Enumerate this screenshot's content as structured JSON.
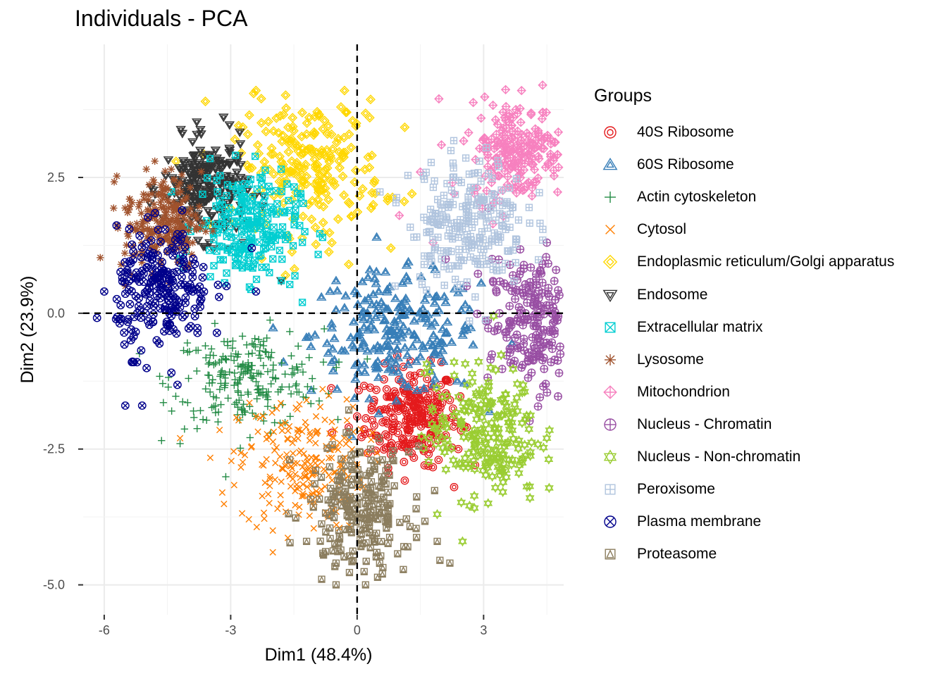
{
  "chart_data": {
    "type": "scatter",
    "title": "Individuals - PCA",
    "xlabel": "Dim1 (48.4%)",
    "ylabel": "Dim2 (23.9%)",
    "xlim": [
      -6.5,
      4.9
    ],
    "ylim": [
      -5.55,
      4.95
    ],
    "xticks": [
      -6,
      -3,
      0,
      3
    ],
    "xtick_labels": [
      "-6",
      "-3",
      "0",
      "3"
    ],
    "yticks": [
      -5.0,
      -2.5,
      0.0,
      2.5
    ],
    "ytick_labels": [
      "-5.0",
      "-2.5",
      "0.0",
      "2.5"
    ],
    "grid": true,
    "reference_lines": {
      "x": 0,
      "y": 0,
      "style": "dashed"
    },
    "legend": {
      "title": "Groups",
      "position": "right"
    },
    "series": [
      {
        "name": "40S Ribosome",
        "color": "#E41A1C",
        "marker": "double-circle",
        "center": [
          1.3,
          -1.9
        ],
        "spread": [
          0.55,
          0.45
        ],
        "points": [
          [
            0.0,
            -1.9
          ],
          [
            -0.2,
            -2.1
          ],
          [
            0.4,
            -1.6
          ],
          [
            0.7,
            -1.4
          ],
          [
            1.0,
            -1.7
          ],
          [
            1.4,
            -1.8
          ],
          [
            1.8,
            -1.9
          ],
          [
            2.2,
            -1.6
          ],
          [
            2.6,
            -2.1
          ],
          [
            1.2,
            -2.4
          ],
          [
            0.8,
            -2.6
          ],
          [
            1.6,
            -2.8
          ],
          [
            2.3,
            -3.2
          ],
          [
            0.3,
            -2.2
          ],
          [
            1.5,
            -1.1
          ],
          [
            2.0,
            -0.9
          ],
          [
            -0.6,
            -2.2
          ],
          [
            2.4,
            -2.5
          ]
        ]
      },
      {
        "name": "60S Ribosome",
        "color": "#377EB8",
        "marker": "double-triangle",
        "center": [
          0.9,
          -0.4
        ],
        "spread": [
          1.0,
          0.55
        ],
        "points": [
          [
            -1.0,
            -0.4
          ],
          [
            -0.5,
            0.6
          ],
          [
            0.3,
            0.8
          ],
          [
            1.2,
            0.6
          ],
          [
            2.1,
            0.2
          ],
          [
            2.6,
            -0.3
          ],
          [
            1.5,
            -0.8
          ],
          [
            0.5,
            -1.0
          ],
          [
            -0.6,
            -0.9
          ],
          [
            -0.3,
            0.1
          ],
          [
            0.9,
            -0.2
          ],
          [
            1.8,
            -0.6
          ]
        ]
      },
      {
        "name": "Actin cytoskeleton",
        "color": "#238B45",
        "marker": "plus",
        "center": [
          -2.6,
          -1.2
        ],
        "spread": [
          0.9,
          0.45
        ],
        "points": [
          [
            -4.4,
            -1.8
          ],
          [
            -4.0,
            -1.2
          ],
          [
            -3.3,
            -2.0
          ],
          [
            -2.8,
            -1.6
          ],
          [
            -2.1,
            -0.8
          ],
          [
            -1.5,
            -1.1
          ],
          [
            -0.8,
            -0.9
          ],
          [
            -3.6,
            -0.6
          ],
          [
            -4.2,
            -2.4
          ],
          [
            -2.4,
            -1.9
          ]
        ]
      },
      {
        "name": "Cytosol",
        "color": "#FF7F00",
        "marker": "cross",
        "center": [
          -1.3,
          -2.8
        ],
        "spread": [
          0.75,
          0.6
        ],
        "points": [
          [
            -4.2,
            -2.3
          ],
          [
            -3.2,
            -3.3
          ],
          [
            -2.0,
            -4.0
          ],
          [
            -2.0,
            -4.4
          ],
          [
            -1.2,
            -1.6
          ],
          [
            -0.6,
            -2.0
          ],
          [
            -0.4,
            -3.0
          ],
          [
            -1.8,
            -3.1
          ],
          [
            -2.4,
            -1.9
          ]
        ]
      },
      {
        "name": "Endoplasmic reticulum/Golgi apparatus",
        "color": "#FFD700",
        "marker": "double-diamond",
        "center": [
          -1.1,
          2.7
        ],
        "spread": [
          0.85,
          0.6
        ],
        "points": [
          [
            -3.6,
            3.9
          ],
          [
            -2.4,
            4.1
          ],
          [
            -0.3,
            4.1
          ],
          [
            0.3,
            3.6
          ],
          [
            -2.9,
            3.2
          ],
          [
            -0.9,
            2.0
          ],
          [
            -0.6,
            1.3
          ],
          [
            -0.2,
            0.9
          ],
          [
            0.8,
            1.2
          ],
          [
            1.3,
            2.2
          ],
          [
            -1.7,
            0.7
          ],
          [
            0.4,
            2.4
          ]
        ]
      },
      {
        "name": "Endosome",
        "color": "#333333",
        "marker": "double-triangle-down",
        "center": [
          -3.6,
          2.3
        ],
        "spread": [
          0.5,
          0.45
        ],
        "points": [
          [
            -3.7,
            3.3
          ],
          [
            -3.3,
            2.6
          ],
          [
            -4.3,
            2.4
          ],
          [
            -3.0,
            2.1
          ],
          [
            -3.4,
            1.5
          ],
          [
            -2.7,
            1.3
          ],
          [
            -1.8,
            0.6
          ],
          [
            -3.5,
            2.9
          ],
          [
            -4.0,
            1.9
          ]
        ]
      },
      {
        "name": "Extracellular matrix",
        "color": "#00CED1",
        "marker": "box-cross",
        "center": [
          -2.6,
          1.6
        ],
        "spread": [
          0.6,
          0.5
        ],
        "points": [
          [
            -2.3,
            2.5
          ],
          [
            -3.2,
            2.0
          ],
          [
            -2.5,
            1.3
          ],
          [
            -1.8,
            0.6
          ],
          [
            -1.3,
            0.2
          ],
          [
            -2.0,
            1.0
          ],
          [
            -3.0,
            1.6
          ]
        ]
      },
      {
        "name": "Lysosome",
        "color": "#A0522D",
        "marker": "asterisk",
        "center": [
          -4.6,
          1.7
        ],
        "spread": [
          0.45,
          0.45
        ],
        "points": [
          [
            -4.8,
            2.8
          ],
          [
            -5.4,
            2.1
          ],
          [
            -5.6,
            0.9
          ],
          [
            -5.5,
            0.5
          ],
          [
            -4.2,
            2.4
          ],
          [
            -3.9,
            1.3
          ],
          [
            -4.9,
            1.5
          ]
        ]
      },
      {
        "name": "Mitochondrion",
        "color": "#F781BF",
        "marker": "diamond-plus",
        "center": [
          3.8,
          3.0
        ],
        "spread": [
          0.55,
          0.45
        ],
        "points": [
          [
            3.9,
            4.1
          ],
          [
            4.4,
            4.2
          ],
          [
            4.9,
            2.5
          ],
          [
            2.0,
            3.1
          ],
          [
            1.5,
            2.6
          ],
          [
            1.0,
            1.8
          ],
          [
            2.3,
            2.2
          ],
          [
            1.8,
            1.3
          ],
          [
            3.1,
            2.7
          ],
          [
            4.4,
            3.7
          ]
        ]
      },
      {
        "name": "Nucleus - Chromatin",
        "color": "#984EA3",
        "marker": "circle-plus",
        "center": [
          4.2,
          -0.2
        ],
        "spread": [
          0.55,
          0.6
        ],
        "points": [
          [
            4.5,
            1.3
          ],
          [
            4.4,
            0.9
          ],
          [
            5.0,
            0.7
          ],
          [
            3.2,
            1.0
          ],
          [
            2.6,
            0.5
          ],
          [
            3.9,
            -1.0
          ],
          [
            4.6,
            -0.9
          ],
          [
            5.2,
            -0.1
          ],
          [
            2.1,
            1.0
          ]
        ]
      },
      {
        "name": "Nucleus - Non-chromatin",
        "color": "#9ACD32",
        "marker": "star-of-david",
        "center": [
          3.0,
          -2.2
        ],
        "spread": [
          0.65,
          0.6
        ],
        "points": [
          [
            4.5,
            -2.3
          ],
          [
            4.9,
            -3.1
          ],
          [
            4.1,
            -3.4
          ],
          [
            2.5,
            -4.2
          ],
          [
            1.9,
            -3.7
          ],
          [
            1.6,
            -1.1
          ],
          [
            2.3,
            -0.9
          ],
          [
            3.8,
            -1.3
          ]
        ]
      },
      {
        "name": "Peroxisome",
        "color": "#B0C4DE",
        "marker": "box-plus",
        "center": [
          2.6,
          1.7
        ],
        "spread": [
          0.7,
          0.6
        ],
        "points": [
          [
            2.9,
            2.8
          ],
          [
            3.2,
            2.2
          ],
          [
            2.6,
            1.7
          ],
          [
            1.7,
            1.5
          ],
          [
            0.9,
            0.5
          ],
          [
            2.8,
            0.3
          ],
          [
            2.0,
            1.0
          ],
          [
            3.4,
            1.4
          ]
        ]
      },
      {
        "name": "Plasma membrane",
        "color": "#00008B",
        "marker": "circle-cross",
        "center": [
          -4.6,
          0.4
        ],
        "spread": [
          0.55,
          0.55
        ],
        "points": [
          [
            -6.0,
            0.4
          ],
          [
            -5.6,
            -0.1
          ],
          [
            -5.3,
            -0.9
          ],
          [
            -5.1,
            -1.7
          ],
          [
            -5.5,
            -1.7
          ],
          [
            -3.9,
            0.4
          ],
          [
            -3.1,
            0.5
          ],
          [
            -2.4,
            0.4
          ],
          [
            -2.5,
            1.2
          ],
          [
            -4.4,
            1.2
          ]
        ]
      },
      {
        "name": "Proteasome",
        "color": "#8B7D5E",
        "marker": "box-triangle",
        "center": [
          0.05,
          -3.6
        ],
        "spread": [
          0.6,
          0.55
        ],
        "points": [
          [
            -1.6,
            -2.7
          ],
          [
            -1.2,
            -4.2
          ],
          [
            -0.5,
            -4.6
          ],
          [
            -0.5,
            -5.0
          ],
          [
            0.2,
            -5.0
          ],
          [
            0.6,
            -4.8
          ],
          [
            1.2,
            -4.3
          ],
          [
            1.9,
            -4.2
          ],
          [
            2.2,
            -4.6
          ],
          [
            1.4,
            -3.6
          ],
          [
            0.6,
            -2.7
          ]
        ]
      }
    ]
  }
}
